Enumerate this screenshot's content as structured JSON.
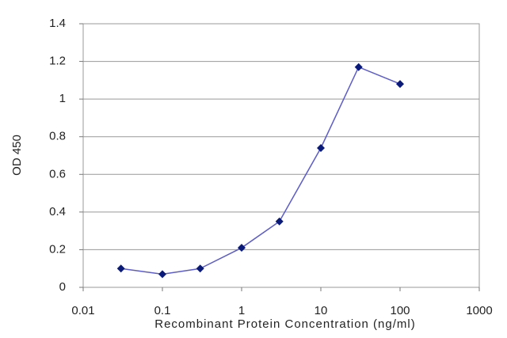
{
  "chart_data": {
    "type": "line",
    "x": [
      0.03,
      0.1,
      0.3,
      1,
      3,
      10,
      30,
      100
    ],
    "values": [
      0.1,
      0.07,
      0.1,
      0.21,
      0.35,
      0.74,
      1.17,
      1.08
    ],
    "color": "#5c5ccc",
    "marker_color": "#0a1a7a",
    "xlabel": "Recombinant Protein Concentration (ng/ml)",
    "ylabel": "OD 450",
    "xscale": "log",
    "xlim": [
      0.01,
      1000
    ],
    "xticks": [
      0.01,
      0.1,
      1,
      10,
      100,
      1000
    ],
    "ylim": [
      0,
      1.4
    ],
    "yticks": [
      0,
      0.2,
      0.4,
      0.6,
      0.8,
      1,
      1.2,
      1.4
    ],
    "grid": true
  }
}
